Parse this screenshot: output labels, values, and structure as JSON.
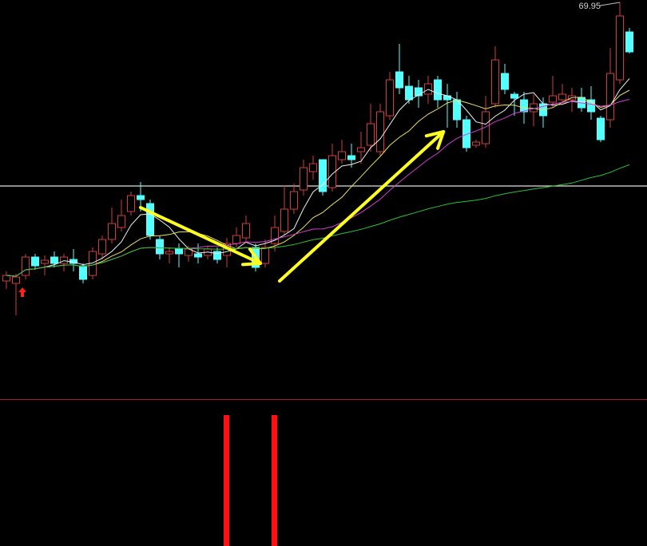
{
  "chart_data": {
    "type": "candlestick",
    "ylim": [
      20.25,
      70.25
    ],
    "grid": false,
    "high_label": "69.95",
    "colors": {
      "up": "#d23c3c",
      "down": "#54ffff",
      "ma5": "#f0f0f0",
      "ma10": "#e8e060",
      "ma20": "#d040d0",
      "ma60": "#30c030",
      "arrow": "#ffff20",
      "signal": "#ff1010",
      "ref_line": "#e0e0e0",
      "divider": "#a02020"
    },
    "moving_averages": [
      5,
      10,
      20,
      60
    ],
    "reference_price": 46.95,
    "candles": [
      [
        35.05,
        36.25,
        34.05,
        35.75
      ],
      [
        34.75,
        35.95,
        30.75,
        35.55
      ],
      [
        35.75,
        38.45,
        35.25,
        38.05
      ],
      [
        38.05,
        38.45,
        36.45,
        36.95
      ],
      [
        37.25,
        38.25,
        35.75,
        37.65
      ],
      [
        38.05,
        38.75,
        36.75,
        37.25
      ],
      [
        37.25,
        38.45,
        36.25,
        38.05
      ],
      [
        37.75,
        39.05,
        36.25,
        37.25
      ],
      [
        36.95,
        37.25,
        34.75,
        35.25
      ],
      [
        35.75,
        39.25,
        35.25,
        38.75
      ],
      [
        38.45,
        40.75,
        37.75,
        40.25
      ],
      [
        40.25,
        44.25,
        39.75,
        42.25
      ],
      [
        41.75,
        45.25,
        41.25,
        43.25
      ],
      [
        43.75,
        46.25,
        43.25,
        45.75
      ],
      [
        45.75,
        47.45,
        43.75,
        45.25
      ],
      [
        44.75,
        45.25,
        40.25,
        40.75
      ],
      [
        40.25,
        40.75,
        37.75,
        38.45
      ],
      [
        38.45,
        39.25,
        37.25,
        38.75
      ],
      [
        39.05,
        39.75,
        36.75,
        38.45
      ],
      [
        38.25,
        39.45,
        37.45,
        39.05
      ],
      [
        38.45,
        39.75,
        37.25,
        38.05
      ],
      [
        38.25,
        39.45,
        37.75,
        39.05
      ],
      [
        38.75,
        39.25,
        37.25,
        37.75
      ],
      [
        38.25,
        40.45,
        36.75,
        39.75
      ],
      [
        39.75,
        41.75,
        39.25,
        40.75
      ],
      [
        40.45,
        43.25,
        40.05,
        42.25
      ],
      [
        39.25,
        39.75,
        36.25,
        36.75
      ],
      [
        37.25,
        40.25,
        36.75,
        39.25
      ],
      [
        39.75,
        43.25,
        38.75,
        41.75
      ],
      [
        41.25,
        47.05,
        40.75,
        44.05
      ],
      [
        44.05,
        47.25,
        43.45,
        46.25
      ],
      [
        46.45,
        50.25,
        45.75,
        49.25
      ],
      [
        48.75,
        50.75,
        47.75,
        49.75
      ],
      [
        50.25,
        50.25,
        45.75,
        46.25
      ],
      [
        46.75,
        52.25,
        46.25,
        50.75
      ],
      [
        50.25,
        52.75,
        49.75,
        51.25
      ],
      [
        50.75,
        52.25,
        49.25,
        50.25
      ],
      [
        51.25,
        53.75,
        49.75,
        51.75
      ],
      [
        52.05,
        57.25,
        51.25,
        54.75
      ],
      [
        51.25,
        57.25,
        50.75,
        56.25
      ],
      [
        55.75,
        61.25,
        55.25,
        60.25
      ],
      [
        61.25,
        64.75,
        58.45,
        59.25
      ],
      [
        59.45,
        60.75,
        57.25,
        57.75
      ],
      [
        59.25,
        60.25,
        56.75,
        58.25
      ],
      [
        58.45,
        60.75,
        57.25,
        59.75
      ],
      [
        60.25,
        60.75,
        56.75,
        57.75
      ],
      [
        58.25,
        59.75,
        54.25,
        57.75
      ],
      [
        57.75,
        58.75,
        54.25,
        55.25
      ],
      [
        55.25,
        55.75,
        51.25,
        51.75
      ],
      [
        52.05,
        52.75,
        51.75,
        52.45
      ],
      [
        52.25,
        58.25,
        51.75,
        56.25
      ],
      [
        57.25,
        64.45,
        56.75,
        62.75
      ],
      [
        61.05,
        62.25,
        58.45,
        59.05
      ],
      [
        58.45,
        58.75,
        55.75,
        57.95
      ],
      [
        57.75,
        58.75,
        54.75,
        56.25
      ],
      [
        56.25,
        58.45,
        54.45,
        57.25
      ],
      [
        57.25,
        58.05,
        54.25,
        55.75
      ],
      [
        57.45,
        60.75,
        56.75,
        58.25
      ],
      [
        57.75,
        59.75,
        57.25,
        58.45
      ],
      [
        57.75,
        59.25,
        56.25,
        58.25
      ],
      [
        58.05,
        59.25,
        56.25,
        56.75
      ],
      [
        57.75,
        59.45,
        55.25,
        56.25
      ],
      [
        55.45,
        55.75,
        52.45,
        52.75
      ],
      [
        55.25,
        64.25,
        54.25,
        61.05
      ],
      [
        60.25,
        69.95,
        59.75,
        68.25
      ],
      [
        66.25,
        66.75,
        63.55,
        63.75
      ]
    ],
    "buy_marker_index": 1,
    "signal_indices": [
      23,
      28
    ],
    "arrows": [
      {
        "from": [
          14,
          44.25
        ],
        "to": [
          26.5,
          37.25
        ]
      },
      {
        "from": [
          28.5,
          35.05
        ],
        "to": [
          45.6,
          53.75
        ]
      }
    ]
  }
}
